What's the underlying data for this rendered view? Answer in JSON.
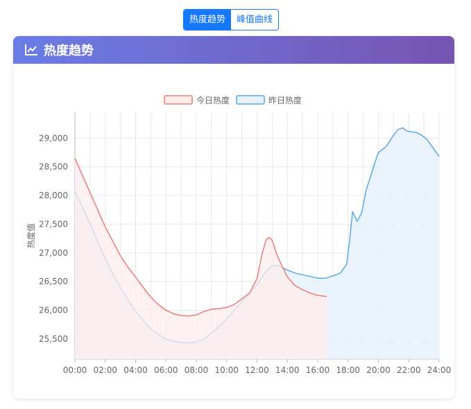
{
  "tabs": [
    {
      "label": "热度趋势",
      "active": true
    },
    {
      "label": "峰值曲线",
      "active": false
    }
  ],
  "card": {
    "title": "热度趋势",
    "icon": "line-chart-icon"
  },
  "colors": {
    "accent": "#1677ff",
    "today_line": "#f07b7b",
    "today_fill": "#fdecec",
    "yesterday_line": "#5aa9e6",
    "yesterday_fill": "#e8f2fc"
  },
  "chart_data": {
    "type": "area",
    "ylabel": "热度值",
    "xlabel": "",
    "x_ticks": [
      "00:00",
      "02:00",
      "04:00",
      "06:00",
      "08:00",
      "10:00",
      "12:00",
      "14:00",
      "16:00",
      "18:00",
      "20:00",
      "22:00",
      "24:00"
    ],
    "y_ticks": [
      25500,
      26000,
      26500,
      27000,
      27500,
      28000,
      28500,
      29000
    ],
    "y_tick_labels": [
      "25,500",
      "26,000",
      "26,500",
      "27,000",
      "27,500",
      "28,000",
      "28,500",
      "29,000"
    ],
    "xlim_hours": [
      0,
      24
    ],
    "ylim": [
      25150,
      29450
    ],
    "grid": true,
    "legend_position": "top-center",
    "series": [
      {
        "name": "今日热度",
        "x_hours": [
          0,
          0.5,
          1,
          1.5,
          2,
          2.5,
          3,
          3.5,
          4,
          4.5,
          5,
          5.5,
          6,
          6.5,
          7,
          7.5,
          8,
          8.5,
          9,
          9.5,
          10,
          10.5,
          11,
          11.5,
          12,
          12.3,
          12.6,
          12.8,
          13.0,
          13.3,
          13.6,
          14,
          14.5,
          15,
          15.5,
          16,
          16.6
        ],
        "values": [
          28650,
          28350,
          28050,
          27750,
          27450,
          27200,
          26950,
          26750,
          26580,
          26400,
          26230,
          26100,
          26000,
          25940,
          25910,
          25900,
          25920,
          25980,
          26020,
          26030,
          26050,
          26100,
          26200,
          26300,
          26550,
          26950,
          27230,
          27270,
          27220,
          26980,
          26800,
          26580,
          26430,
          26360,
          26300,
          26260,
          26240
        ]
      },
      {
        "name": "昨日热度",
        "x_hours": [
          0,
          0.5,
          1,
          1.5,
          2,
          2.5,
          3,
          3.5,
          4,
          4.5,
          5,
          5.5,
          6,
          6.5,
          7,
          7.5,
          8,
          8.5,
          9,
          9.5,
          10,
          10.5,
          11,
          11.5,
          12,
          12.5,
          13,
          13.5,
          14,
          14.5,
          15,
          15.5,
          16,
          16.5,
          17,
          17.5,
          17.9,
          18.1,
          18.3,
          18.6,
          18.9,
          19.2,
          19.5,
          19.8,
          20,
          20.5,
          21,
          21.3,
          21.6,
          21.9,
          22.2,
          22.5,
          22.8,
          23.2,
          23.6,
          24
        ],
        "values": [
          28070,
          27800,
          27500,
          27200,
          26900,
          26630,
          26400,
          26180,
          25980,
          25820,
          25680,
          25580,
          25500,
          25460,
          25440,
          25430,
          25450,
          25500,
          25600,
          25720,
          25850,
          26000,
          26150,
          26280,
          26450,
          26650,
          26780,
          26770,
          26700,
          26650,
          26620,
          26590,
          26560,
          26560,
          26600,
          26650,
          26800,
          27200,
          27720,
          27550,
          27700,
          28100,
          28350,
          28600,
          28750,
          28850,
          29050,
          29150,
          29180,
          29120,
          29110,
          29100,
          29060,
          28980,
          28830,
          28680
        ]
      }
    ]
  }
}
